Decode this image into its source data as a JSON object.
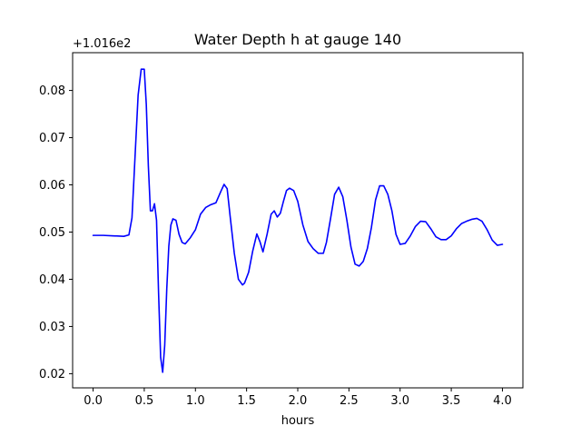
{
  "chart_data": {
    "type": "line",
    "title": "Water Depth h at gauge 140",
    "xlabel": "hours",
    "ylabel": "",
    "y_offset_label": "+1.016e2",
    "xlim": [
      -0.2,
      4.2
    ],
    "ylim": [
      0.017,
      0.088
    ],
    "x_ticks": [
      0.0,
      0.5,
      1.0,
      1.5,
      2.0,
      2.5,
      3.0,
      3.5,
      4.0
    ],
    "x_tick_labels": [
      "0.0",
      "0.5",
      "1.0",
      "1.5",
      "2.0",
      "2.5",
      "3.0",
      "3.5",
      "4.0"
    ],
    "y_ticks": [
      0.02,
      0.03,
      0.04,
      0.05,
      0.06,
      0.07,
      0.08
    ],
    "y_tick_labels": [
      "0.02",
      "0.03",
      "0.04",
      "0.05",
      "0.06",
      "0.07",
      "0.08"
    ],
    "grid": false,
    "series": [
      {
        "color": "#0000ff",
        "x": [
          0.0,
          0.1,
          0.2,
          0.3,
          0.35,
          0.38,
          0.41,
          0.44,
          0.47,
          0.5,
          0.52,
          0.54,
          0.56,
          0.58,
          0.6,
          0.62,
          0.64,
          0.66,
          0.68,
          0.7,
          0.72,
          0.74,
          0.76,
          0.78,
          0.81,
          0.84,
          0.87,
          0.9,
          0.95,
          1.0,
          1.05,
          1.1,
          1.15,
          1.2,
          1.25,
          1.28,
          1.31,
          1.34,
          1.38,
          1.42,
          1.46,
          1.48,
          1.52,
          1.56,
          1.6,
          1.63,
          1.66,
          1.7,
          1.74,
          1.77,
          1.8,
          1.83,
          1.86,
          1.89,
          1.92,
          1.96,
          2.0,
          2.05,
          2.1,
          2.15,
          2.2,
          2.25,
          2.28,
          2.32,
          2.36,
          2.4,
          2.44,
          2.48,
          2.52,
          2.56,
          2.6,
          2.64,
          2.68,
          2.72,
          2.76,
          2.8,
          2.84,
          2.88,
          2.92,
          2.96,
          3.0,
          3.05,
          3.1,
          3.15,
          3.2,
          3.25,
          3.3,
          3.35,
          3.4,
          3.45,
          3.5,
          3.55,
          3.6,
          3.65,
          3.7,
          3.75,
          3.8,
          3.85,
          3.9,
          3.95,
          4.0
        ],
        "y": [
          0.0493,
          0.0493,
          0.0492,
          0.0491,
          0.0494,
          0.053,
          0.066,
          0.079,
          0.0845,
          0.0845,
          0.077,
          0.064,
          0.0545,
          0.0545,
          0.056,
          0.0525,
          0.037,
          0.0235,
          0.0203,
          0.026,
          0.038,
          0.047,
          0.0515,
          0.0528,
          0.0525,
          0.0495,
          0.0478,
          0.0475,
          0.0488,
          0.0505,
          0.0538,
          0.0552,
          0.0558,
          0.0562,
          0.0587,
          0.0601,
          0.0592,
          0.0532,
          0.0455,
          0.04,
          0.0388,
          0.0392,
          0.0415,
          0.046,
          0.0496,
          0.048,
          0.0458,
          0.0495,
          0.0538,
          0.0545,
          0.0532,
          0.054,
          0.0565,
          0.0588,
          0.0593,
          0.0588,
          0.0565,
          0.0515,
          0.048,
          0.0465,
          0.0455,
          0.0455,
          0.0478,
          0.0528,
          0.058,
          0.0595,
          0.0575,
          0.0525,
          0.0468,
          0.0432,
          0.0428,
          0.0438,
          0.0465,
          0.051,
          0.0568,
          0.0598,
          0.0598,
          0.058,
          0.0545,
          0.0495,
          0.0474,
          0.0476,
          0.0492,
          0.0512,
          0.0523,
          0.0522,
          0.0507,
          0.049,
          0.0484,
          0.0484,
          0.0492,
          0.0507,
          0.0518,
          0.0523,
          0.0527,
          0.0529,
          0.0523,
          0.0505,
          0.0483,
          0.0472,
          0.0474
        ]
      }
    ]
  }
}
